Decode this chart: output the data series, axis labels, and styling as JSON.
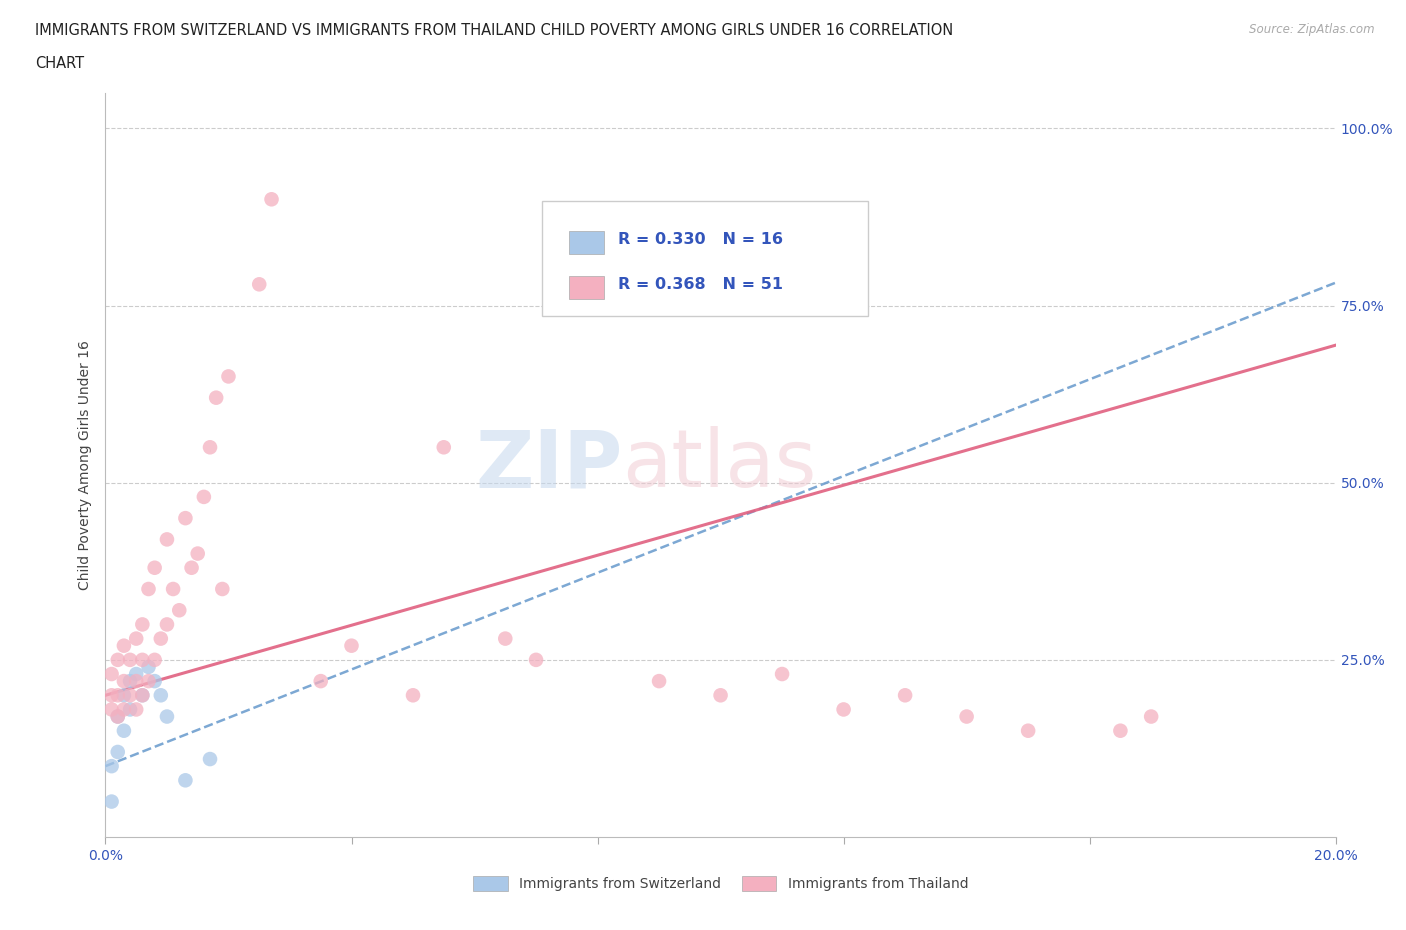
{
  "title_line1": "IMMIGRANTS FROM SWITZERLAND VS IMMIGRANTS FROM THAILAND CHILD POVERTY AMONG GIRLS UNDER 16 CORRELATION",
  "title_line2": "CHART",
  "source": "Source: ZipAtlas.com",
  "ylabel": "Child Poverty Among Girls Under 16",
  "xlim": [
    0.0,
    0.2
  ],
  "ylim": [
    0.0,
    1.05
  ],
  "xticks": [
    0.0,
    0.04,
    0.08,
    0.12,
    0.16,
    0.2
  ],
  "xticklabels": [
    "0.0%",
    "",
    "",
    "",
    "",
    "20.0%"
  ],
  "ytick_positions": [
    0.0,
    0.25,
    0.5,
    0.75,
    1.0
  ],
  "ytick_labels_right": [
    "",
    "25.0%",
    "50.0%",
    "75.0%",
    "100.0%"
  ],
  "watermark_zip": "ZIP",
  "watermark_atlas": "atlas",
  "switzerland_color": "#aac8e8",
  "switzerland_line_color": "#6699cc",
  "thailand_color": "#f4b0c0",
  "thailand_line_color": "#e06080",
  "legend_text_color": "#3355bb",
  "legend_R_switzerland": "R = 0.330",
  "legend_N_switzerland": "N = 16",
  "legend_R_thailand": "R = 0.368",
  "legend_N_thailand": "N = 51",
  "swiss_x": [
    0.001,
    0.001,
    0.002,
    0.002,
    0.003,
    0.003,
    0.004,
    0.004,
    0.005,
    0.006,
    0.007,
    0.008,
    0.009,
    0.01,
    0.013,
    0.017
  ],
  "swiss_y": [
    0.05,
    0.1,
    0.12,
    0.17,
    0.15,
    0.2,
    0.18,
    0.22,
    0.23,
    0.2,
    0.24,
    0.22,
    0.2,
    0.17,
    0.08,
    0.11
  ],
  "thai_x": [
    0.001,
    0.001,
    0.001,
    0.002,
    0.002,
    0.002,
    0.003,
    0.003,
    0.003,
    0.004,
    0.004,
    0.005,
    0.005,
    0.005,
    0.006,
    0.006,
    0.006,
    0.007,
    0.007,
    0.008,
    0.008,
    0.009,
    0.01,
    0.01,
    0.011,
    0.012,
    0.013,
    0.014,
    0.015,
    0.016,
    0.017,
    0.018,
    0.019,
    0.02,
    0.025,
    0.027,
    0.035,
    0.04,
    0.05,
    0.055,
    0.065,
    0.07,
    0.09,
    0.1,
    0.11,
    0.12,
    0.13,
    0.14,
    0.15,
    0.165,
    0.17
  ],
  "thai_y": [
    0.18,
    0.2,
    0.23,
    0.17,
    0.2,
    0.25,
    0.18,
    0.22,
    0.27,
    0.2,
    0.25,
    0.18,
    0.22,
    0.28,
    0.2,
    0.25,
    0.3,
    0.22,
    0.35,
    0.25,
    0.38,
    0.28,
    0.3,
    0.42,
    0.35,
    0.32,
    0.45,
    0.38,
    0.4,
    0.48,
    0.55,
    0.62,
    0.35,
    0.65,
    0.78,
    0.9,
    0.22,
    0.27,
    0.2,
    0.55,
    0.28,
    0.25,
    0.22,
    0.2,
    0.23,
    0.18,
    0.2,
    0.17,
    0.15,
    0.15,
    0.17
  ],
  "background_color": "#ffffff",
  "grid_color": "#cccccc",
  "grid_style": "--"
}
